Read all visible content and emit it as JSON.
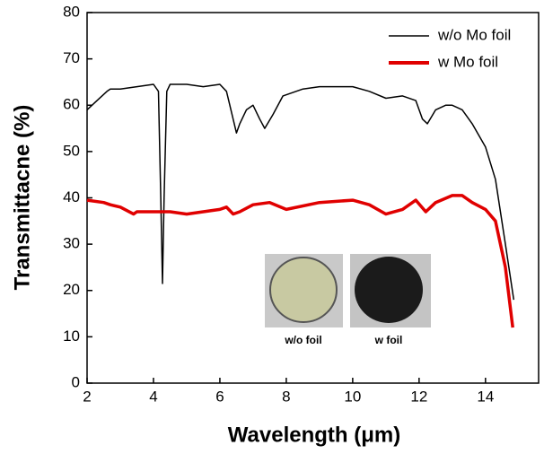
{
  "chart_data": {
    "type": "line",
    "xlabel": "Wavelength (μm)",
    "ylabel": "Transmittacne (%)",
    "xlim": [
      2,
      15.6
    ],
    "xticks": [
      2,
      4,
      6,
      8,
      10,
      12,
      14
    ],
    "ylim": [
      0,
      80
    ],
    "yticks": [
      0,
      10,
      20,
      30,
      40,
      50,
      60,
      70,
      80
    ],
    "legend": "upper right",
    "annotations": [
      "w/o foil",
      "w foil"
    ],
    "series": [
      {
        "name": "w/o Mo foil",
        "color": "#000000",
        "x": [
          2,
          2.3,
          2.6,
          2.7,
          3,
          3.5,
          4,
          4.15,
          4.22,
          4.27,
          4.32,
          4.4,
          4.5,
          5,
          5.5,
          6,
          6.2,
          6.4,
          6.5,
          6.6,
          6.8,
          7,
          7.2,
          7.35,
          7.6,
          7.9,
          8.5,
          9,
          10,
          10.5,
          11,
          11.5,
          11.9,
          12.1,
          12.25,
          12.5,
          12.8,
          13,
          13.3,
          13.6,
          14,
          14.3,
          14.6,
          14.85
        ],
        "values": [
          59,
          61,
          63,
          63.5,
          63.5,
          64,
          64.5,
          63,
          40,
          21.5,
          40,
          63,
          64.5,
          64.5,
          64,
          64.5,
          63,
          57,
          54,
          56,
          59,
          60,
          57,
          55,
          58,
          62,
          63.5,
          64,
          64,
          63,
          61.5,
          62,
          61,
          57,
          56,
          59,
          60,
          60,
          59,
          56,
          51,
          44,
          30,
          18
        ]
      },
      {
        "name": "w Mo foil",
        "color": "#e00000",
        "x": [
          2,
          2.5,
          2.7,
          3,
          3.4,
          3.5,
          4,
          4.5,
          5,
          5.5,
          6,
          6.2,
          6.4,
          6.6,
          7,
          7.5,
          8,
          9,
          10,
          10.5,
          11,
          11.5,
          11.9,
          12.2,
          12.5,
          13,
          13.3,
          13.6,
          14,
          14.3,
          14.6,
          14.82
        ],
        "values": [
          39.5,
          39,
          38.5,
          38,
          36.5,
          37,
          37,
          37,
          36.5,
          37,
          37.5,
          38,
          36.5,
          37,
          38.5,
          39,
          37.5,
          39,
          39.5,
          38.5,
          36.5,
          37.5,
          39.5,
          37,
          39,
          40.5,
          40.5,
          39,
          37.5,
          35,
          25,
          12
        ]
      }
    ]
  }
}
